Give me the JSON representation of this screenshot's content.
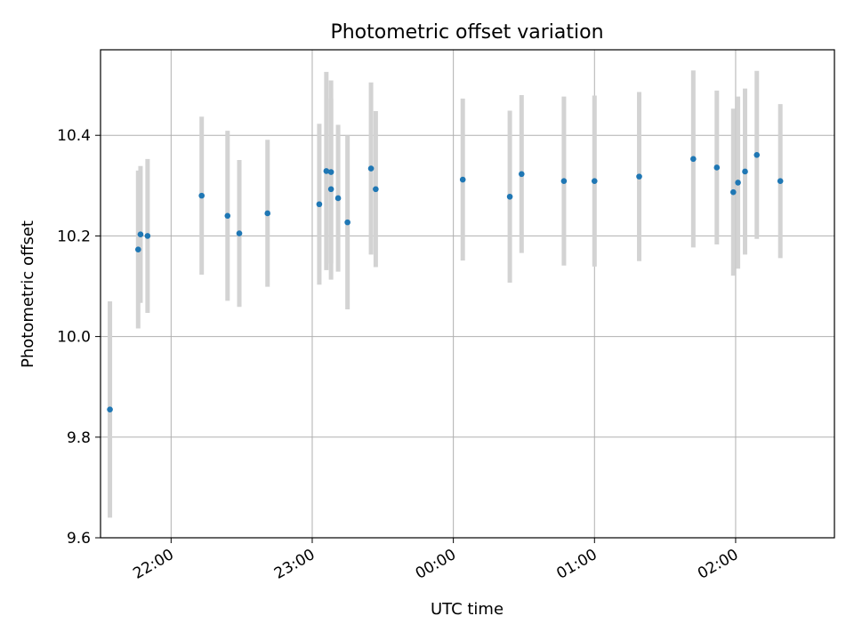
{
  "chart_data": {
    "type": "scatter",
    "title": "Photometric offset variation",
    "xlabel": "UTC time",
    "ylabel": "Photometric offset",
    "xlim": [
      "21:30",
      "02:42"
    ],
    "ylim": [
      9.6,
      10.57
    ],
    "x_ticks": [
      "22:00",
      "23:00",
      "00:00",
      "01:00",
      "02:00"
    ],
    "y_ticks": [
      9.6,
      9.8,
      10.0,
      10.2,
      10.4
    ],
    "grid": true,
    "errorbar_color": "#d3d3d3",
    "marker_color": "#1f77b4",
    "points": [
      {
        "x": "21:34",
        "y": 9.855,
        "err": 0.215
      },
      {
        "x": "21:46",
        "y": 10.173,
        "err": 0.157
      },
      {
        "x": "21:47",
        "y": 10.203,
        "err": 0.136
      },
      {
        "x": "21:50",
        "y": 10.2,
        "err": 0.153
      },
      {
        "x": "22:13",
        "y": 10.28,
        "err": 0.157
      },
      {
        "x": "22:24",
        "y": 10.24,
        "err": 0.169
      },
      {
        "x": "22:29",
        "y": 10.205,
        "err": 0.146
      },
      {
        "x": "22:41",
        "y": 10.245,
        "err": 0.146
      },
      {
        "x": "23:03",
        "y": 10.263,
        "err": 0.16
      },
      {
        "x": "23:06",
        "y": 10.329,
        "err": 0.197
      },
      {
        "x": "23:08",
        "y": 10.327,
        "err": 0.182
      },
      {
        "x": "23:08",
        "y": 10.293,
        "err": 0.18
      },
      {
        "x": "23:11",
        "y": 10.275,
        "err": 0.146
      },
      {
        "x": "23:15",
        "y": 10.227,
        "err": 0.173
      },
      {
        "x": "23:25",
        "y": 10.334,
        "err": 0.171
      },
      {
        "x": "23:27",
        "y": 10.293,
        "err": 0.155
      },
      {
        "x": "00:04",
        "y": 10.312,
        "err": 0.161
      },
      {
        "x": "00:24",
        "y": 10.278,
        "err": 0.171
      },
      {
        "x": "00:29",
        "y": 10.323,
        "err": 0.157
      },
      {
        "x": "00:47",
        "y": 10.309,
        "err": 0.168
      },
      {
        "x": "01:00",
        "y": 10.309,
        "err": 0.17
      },
      {
        "x": "01:19",
        "y": 10.318,
        "err": 0.168
      },
      {
        "x": "01:42",
        "y": 10.353,
        "err": 0.176
      },
      {
        "x": "01:52",
        "y": 10.336,
        "err": 0.153
      },
      {
        "x": "01:59",
        "y": 10.287,
        "err": 0.166
      },
      {
        "x": "02:01",
        "y": 10.306,
        "err": 0.171
      },
      {
        "x": "02:04",
        "y": 10.328,
        "err": 0.165
      },
      {
        "x": "02:09",
        "y": 10.361,
        "err": 0.167
      },
      {
        "x": "02:19",
        "y": 10.309,
        "err": 0.153
      }
    ]
  }
}
